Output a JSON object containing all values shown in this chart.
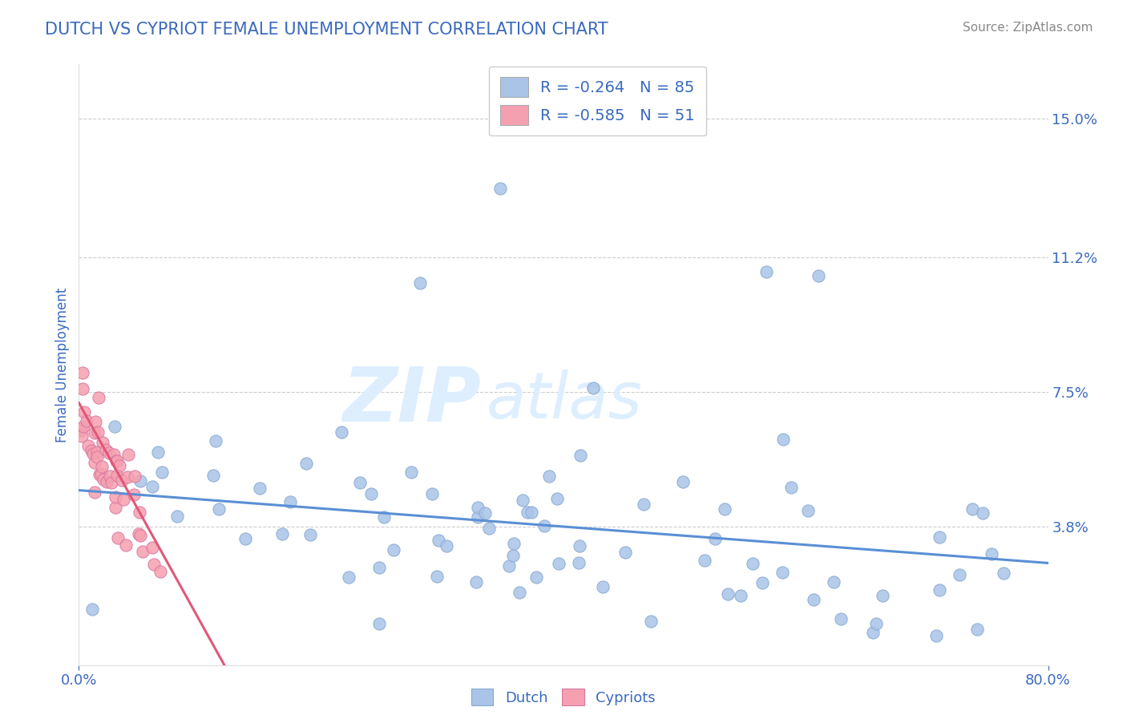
{
  "title": "DUTCH VS CYPRIOT FEMALE UNEMPLOYMENT CORRELATION CHART",
  "source": "Source: ZipAtlas.com",
  "ylabel": "Female Unemployment",
  "xlim": [
    0.0,
    0.8
  ],
  "ylim": [
    0.0,
    0.165
  ],
  "ytick_labels": [
    "3.8%",
    "7.5%",
    "11.2%",
    "15.0%"
  ],
  "ytick_values": [
    0.038,
    0.075,
    0.112,
    0.15
  ],
  "xtick_labels": [
    "0.0%",
    "80.0%"
  ],
  "xtick_values": [
    0.0,
    0.8
  ],
  "title_color": "#3a6abf",
  "axis_color": "#3a6abf",
  "background_color": "#ffffff",
  "dutch_color": "#aac4e8",
  "cypriot_color": "#f5a0b0",
  "dutch_line_color": "#5a8fd4",
  "cypriot_line_color": "#e05878",
  "grid_color": "#cccccc",
  "legend_dutch_label": "R = -0.264   N = 85",
  "legend_cypriot_label": "R = -0.585   N = 51",
  "dutch_line_x0": 0.0,
  "dutch_line_y0": 0.048,
  "dutch_line_x1": 0.8,
  "dutch_line_y1": 0.028,
  "cyp_line_x0": 0.0,
  "cyp_line_y0": 0.072,
  "cyp_line_x1": 0.12,
  "cyp_line_y1": 0.0
}
